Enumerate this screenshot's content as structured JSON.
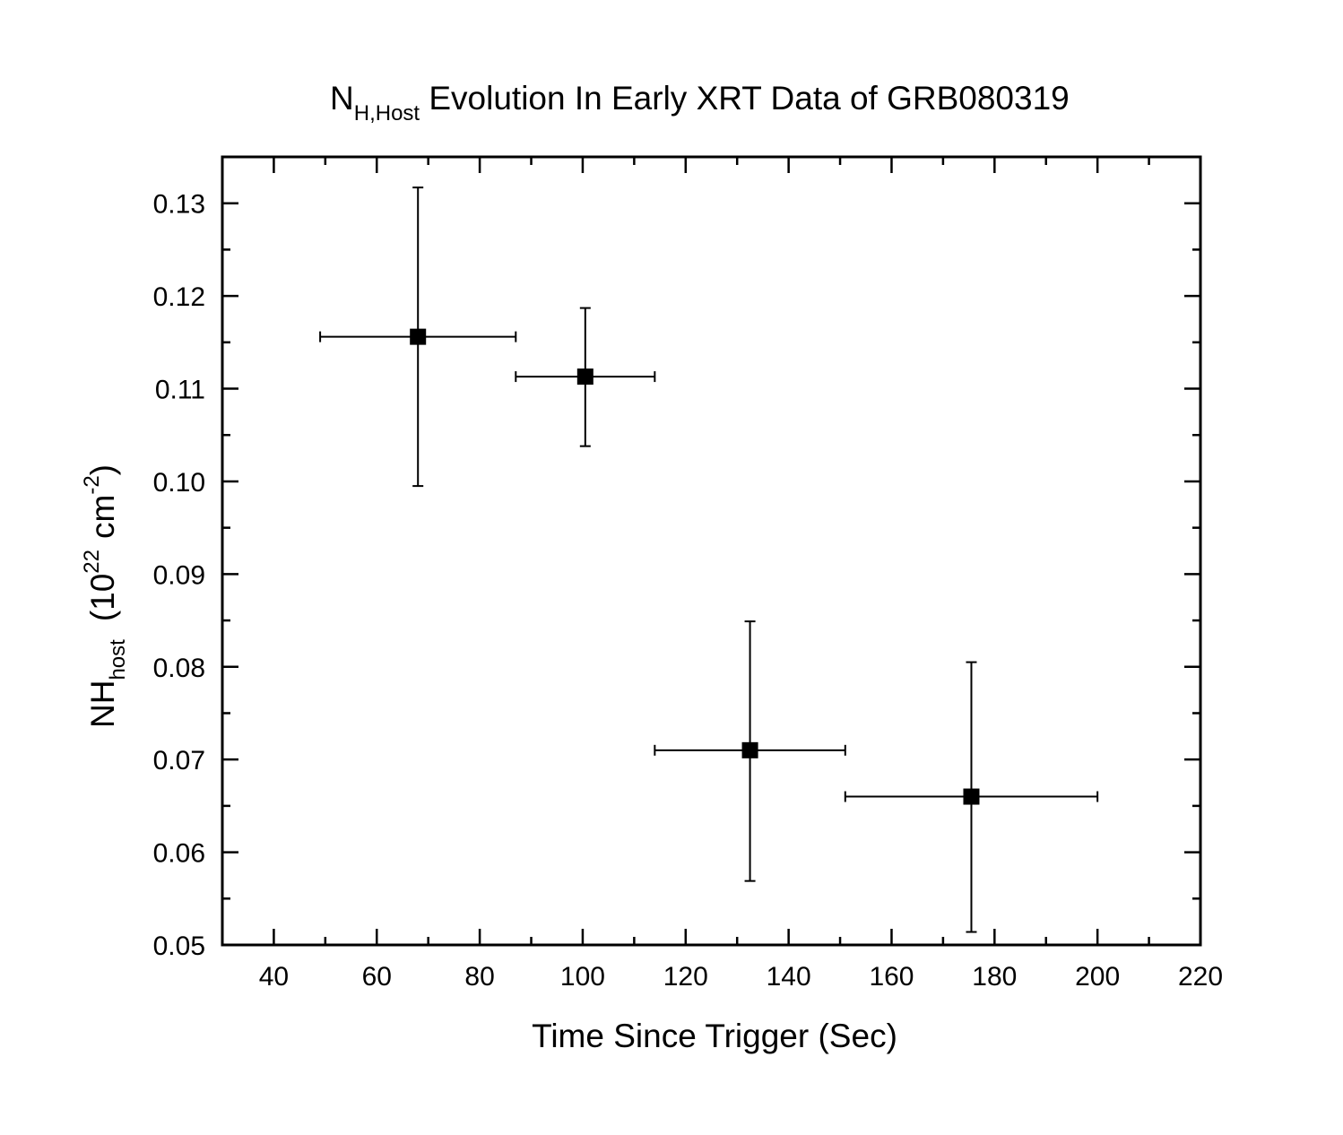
{
  "chart_data": {
    "type": "scatter",
    "title": {
      "main": "N",
      "sub": "H,Host",
      "rest": " Evolution In Early XRT Data of GRB080319"
    },
    "xlabel": "Time Since Trigger (Sec)",
    "ylabel": {
      "main": "NH",
      "sub": "host",
      "units_open": "(10",
      "units_exp": "22",
      "units_mid": "cm",
      "units_exp2": "-2",
      "units_close": ")"
    },
    "xlim": [
      30,
      220
    ],
    "ylim": [
      0.05,
      0.135
    ],
    "xticks": [
      40,
      60,
      80,
      100,
      120,
      140,
      160,
      180,
      200,
      220
    ],
    "xtick_labels": [
      "40",
      "60",
      "80",
      "100",
      "120",
      "140",
      "160",
      "180",
      "200",
      "220"
    ],
    "yticks": [
      0.05,
      0.06,
      0.07,
      0.08,
      0.09,
      0.1,
      0.11,
      0.12,
      0.13
    ],
    "ytick_labels": [
      "0.05",
      "0.06",
      "0.07",
      "0.08",
      "0.09",
      "0.10",
      "0.11",
      "0.12",
      "0.13"
    ],
    "grid": false,
    "legend": "none",
    "points": [
      {
        "x": 68,
        "y": 0.1156,
        "xerr_low": 49,
        "xerr_high": 87,
        "yerr_low": 0.0995,
        "yerr_high": 0.1317
      },
      {
        "x": 100.5,
        "y": 0.1113,
        "xerr_low": 87,
        "xerr_high": 114,
        "yerr_low": 0.1038,
        "yerr_high": 0.1187
      },
      {
        "x": 132.5,
        "y": 0.071,
        "xerr_low": 114,
        "xerr_high": 151,
        "yerr_low": 0.0569,
        "yerr_high": 0.0849
      },
      {
        "x": 175.5,
        "y": 0.066,
        "xerr_low": 151,
        "xerr_high": 200,
        "yerr_low": 0.0514,
        "yerr_high": 0.0805
      }
    ],
    "colors": {
      "marker": "#000000",
      "axis": "#000000",
      "background": "#ffffff"
    }
  }
}
